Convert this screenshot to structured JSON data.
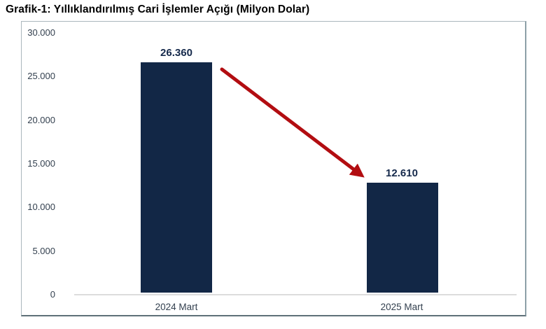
{
  "title": "Grafik-1: Yıllıklandırılmış Cari İşlemler Açığı (Milyon Dolar)",
  "chart_data": {
    "type": "bar",
    "title": "Grafik-1: Yıllıklandırılmış Cari İşlemler Açığı (Milyon Dolar)",
    "categories": [
      "2024 Mart",
      "2025 Mart"
    ],
    "values": [
      26360,
      12610
    ],
    "value_labels": [
      "26.360",
      "12.610"
    ],
    "xlabel": "",
    "ylabel": "",
    "ylim": [
      0,
      30000
    ],
    "ytick_interval": 5000,
    "ytick_labels": [
      "30.000",
      "25.000",
      "20.000",
      "15.000",
      "10.000",
      "5.000",
      "0"
    ],
    "grid": false,
    "legend": false,
    "annotations": [
      {
        "name": "decrease-arrow",
        "description": "thick red arrow from top of 2024 bar down to 2025 value label"
      }
    ],
    "colors": {
      "bar": "#122746",
      "arrow": "#b20d11",
      "axis_labels": "#33404f",
      "value_labels": "#15294b",
      "title": "#000000",
      "border": "#aab6bc",
      "border_bottom": "#5e7078",
      "baseline": "#dcdcdc",
      "background": "#ffffff"
    }
  }
}
